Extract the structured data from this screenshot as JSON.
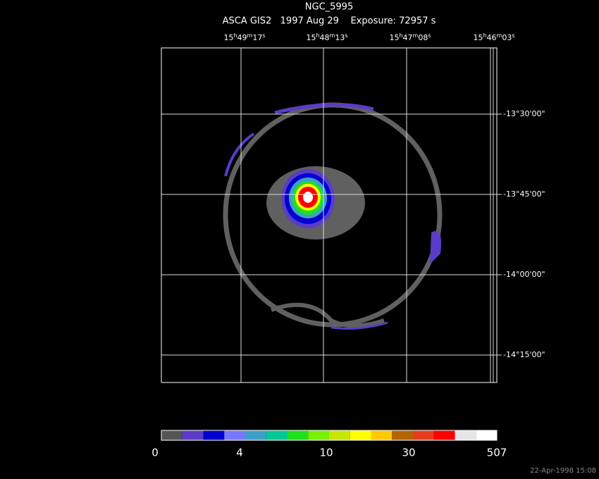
{
  "title": "NGC_5995",
  "subtitle": "ASCA GIS2   1997 Aug 29    Exposure: 72957 s",
  "ra_labels": [
    [
      "15",
      "h",
      "49",
      "m",
      "17",
      "s"
    ],
    [
      "15",
      "h",
      "48",
      "m",
      "13",
      "s"
    ],
    [
      "15",
      "h",
      "47",
      "m",
      "08",
      "s"
    ],
    [
      "15",
      "h",
      "46",
      "m",
      "03",
      "s"
    ]
  ],
  "dec_labels": [
    "-13°30'00\"",
    "-13°45'00\"",
    "-14°00'00\"",
    "-14°15'00\""
  ],
  "colorbar": {
    "colors": [
      "#555555",
      "#5a3cc8",
      "#0000d0",
      "#7878ff",
      "#3ca0c8",
      "#00c896",
      "#1ee01e",
      "#78f000",
      "#c8e600",
      "#ffff00",
      "#ffc800",
      "#b46400",
      "#e63c1e",
      "#ff0000",
      "#e6e6e6",
      "#ffffff"
    ],
    "labels": [
      "0",
      "4",
      "10",
      "30",
      "507"
    ]
  },
  "footer": "22-Apr-1998 15:08"
}
